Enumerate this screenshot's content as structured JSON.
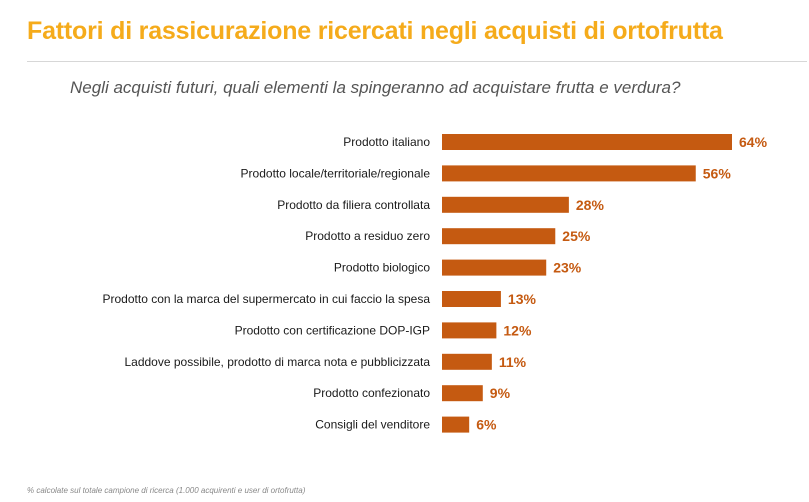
{
  "title": "Fattori di rassicurazione ricercati negli acquisti di ortofrutta",
  "subtitle": "Negli acquisti futuri, quali elementi la spingeranno ad acquistare frutta e verdura?",
  "footnote": "% calcolate sul totale campione di ricerca (1.000 acquirenti e user di ortofrutta)",
  "colors": {
    "title": "#f5ab1b",
    "bar": "#c55a11",
    "value_label": "#c55a11"
  },
  "chart_data": {
    "type": "bar",
    "orientation": "horizontal",
    "title": "Negli acquisti futuri, quali elementi la spingeranno ad acquistare frutta e verdura?",
    "xlabel": "",
    "ylabel": "",
    "unit": "%",
    "xlim": [
      0,
      64
    ],
    "grid": false,
    "categories": [
      "Prodotto italiano",
      "Prodotto locale/territoriale/regionale",
      "Prodotto da filiera controllata",
      "Prodotto a residuo zero",
      "Prodotto biologico",
      "Prodotto con la marca del supermercato in cui faccio la spesa",
      "Prodotto con certificazione DOP-IGP",
      "Laddove possibile, prodotto di marca nota e pubblicizzata",
      "Prodotto confezionato",
      "Consigli del venditore"
    ],
    "values": [
      64,
      56,
      28,
      25,
      23,
      13,
      12,
      11,
      9,
      6
    ],
    "value_labels": [
      "64%",
      "56%",
      "28%",
      "25%",
      "23%",
      "13%",
      "12%",
      "11%",
      "9%",
      "6%"
    ]
  }
}
